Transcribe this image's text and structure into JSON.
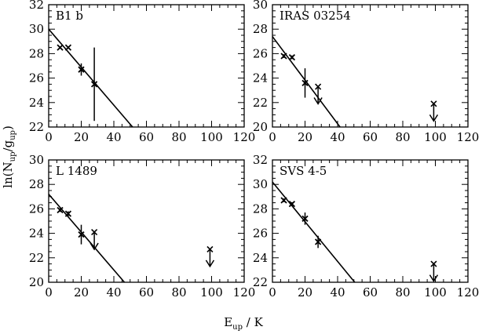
{
  "figure": {
    "ylabel": {
      "main": "ln(N",
      "sub1": "up",
      "mid": "/g",
      "sub2": "up",
      "end": ")"
    },
    "xlabel": {
      "main": "E",
      "sub": "up",
      "end": " / K"
    }
  },
  "chart_data": [
    {
      "type": "scatter",
      "title": "B1 b",
      "xlim": [
        0,
        120
      ],
      "ylim": [
        22,
        32
      ],
      "xticks": [
        0,
        20,
        40,
        60,
        80,
        100,
        120
      ],
      "xtick_labels": [
        "0",
        "20",
        "40",
        "60",
        "80",
        "100",
        "120"
      ],
      "yticks": [
        22,
        24,
        26,
        28,
        30,
        32
      ],
      "ytick_labels": [
        "22",
        "24",
        "26",
        "28",
        "30",
        "32"
      ],
      "points": [
        {
          "x": 7,
          "y": 28.5,
          "err": 0.1
        },
        {
          "x": 12,
          "y": 28.5,
          "err": 0.1
        },
        {
          "x": 20,
          "y": 26.7,
          "err": 0.5
        },
        {
          "x": 28,
          "y": 25.5,
          "err": 3.0
        }
      ],
      "upper_limits": [],
      "fit": {
        "x": [
          0,
          51.5
        ],
        "y": [
          30.0,
          22.0
        ]
      }
    },
    {
      "type": "scatter",
      "title": "IRAS 03254",
      "xlim": [
        0,
        120
      ],
      "ylim": [
        20,
        30
      ],
      "xticks": [
        0,
        20,
        40,
        60,
        80,
        100,
        120
      ],
      "xtick_labels": [
        "0",
        "20",
        "40",
        "60",
        "80",
        "100",
        "120"
      ],
      "yticks": [
        20,
        22,
        24,
        26,
        28,
        30
      ],
      "ytick_labels": [
        "20",
        "22",
        "24",
        "26",
        "28",
        "30"
      ],
      "points": [
        {
          "x": 7,
          "y": 25.8,
          "err": 0.15
        },
        {
          "x": 12,
          "y": 25.7,
          "err": 0.15
        },
        {
          "x": 20,
          "y": 23.6,
          "err": 1.2
        }
      ],
      "upper_limits": [
        {
          "x": 28,
          "y": 23.3
        },
        {
          "x": 99,
          "y": 21.9
        }
      ],
      "fit": {
        "x": [
          0,
          41.5
        ],
        "y": [
          27.4,
          20.0
        ]
      }
    },
    {
      "type": "scatter",
      "title": "L 1489",
      "xlim": [
        0,
        120
      ],
      "ylim": [
        20,
        30
      ],
      "xticks": [
        0,
        20,
        40,
        60,
        80,
        100,
        120
      ],
      "xtick_labels": [
        "0",
        "20",
        "40",
        "60",
        "80",
        "100",
        "120"
      ],
      "yticks": [
        20,
        22,
        24,
        26,
        28,
        30
      ],
      "ytick_labels": [
        "20",
        "22",
        "24",
        "26",
        "28",
        "30"
      ],
      "points": [
        {
          "x": 7,
          "y": 25.9,
          "err": 0.15
        },
        {
          "x": 12,
          "y": 25.6,
          "err": 0.2
        },
        {
          "x": 20,
          "y": 23.9,
          "err": 0.8
        }
      ],
      "upper_limits": [
        {
          "x": 28,
          "y": 24.1
        },
        {
          "x": 99,
          "y": 22.7
        }
      ],
      "fit": {
        "x": [
          0,
          46.5
        ],
        "y": [
          27.2,
          20.0
        ]
      }
    },
    {
      "type": "scatter",
      "title": "SVS 4-5",
      "xlim": [
        0,
        120
      ],
      "ylim": [
        22,
        32
      ],
      "xticks": [
        0,
        20,
        40,
        60,
        80,
        100,
        120
      ],
      "xtick_labels": [
        "0",
        "20",
        "40",
        "60",
        "80",
        "100",
        "120"
      ],
      "yticks": [
        22,
        24,
        26,
        28,
        30,
        32
      ],
      "ytick_labels": [
        "22",
        "24",
        "26",
        "28",
        "30",
        "32"
      ],
      "points": [
        {
          "x": 7,
          "y": 28.7,
          "err": 0.15
        },
        {
          "x": 12,
          "y": 28.4,
          "err": 0.15
        },
        {
          "x": 20,
          "y": 27.2,
          "err": 0.5
        },
        {
          "x": 28,
          "y": 25.3,
          "err": 0.5
        }
      ],
      "upper_limits": [
        {
          "x": 99,
          "y": 23.5
        }
      ],
      "fit": {
        "x": [
          0,
          50.5
        ],
        "y": [
          30.2,
          22.0
        ]
      }
    }
  ]
}
